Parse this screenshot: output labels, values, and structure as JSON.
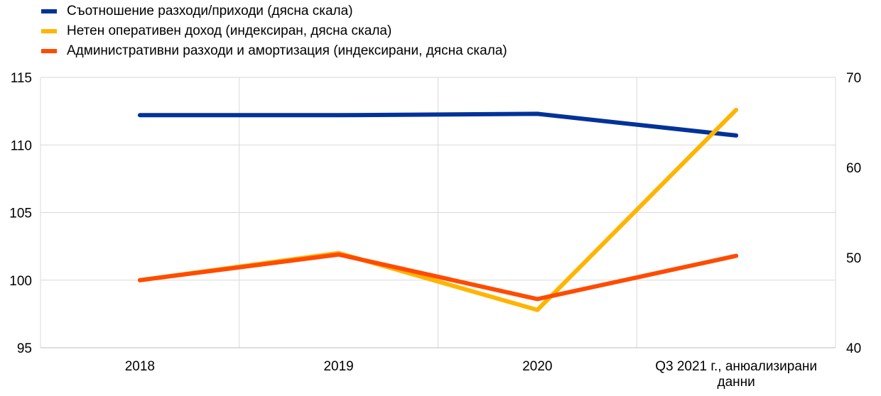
{
  "chart_data": {
    "type": "line",
    "categories": [
      "2018",
      "2019",
      "2020",
      "Q3 2021 г., анюализирани данни"
    ],
    "left_axis": {
      "ylim": [
        95,
        115
      ],
      "ticks": [
        "115",
        "110",
        "105",
        "100",
        "95"
      ]
    },
    "right_axis": {
      "ylim": [
        40,
        70
      ],
      "ticks": [
        "70",
        "60",
        "50",
        "40"
      ]
    },
    "grid": true,
    "legend_position": "top-left",
    "series": [
      {
        "name": "Съотношение разходи/приходи (дясна скала)",
        "color": "#003299",
        "axis": "left",
        "values": [
          112.2,
          112.2,
          112.3,
          110.7
        ]
      },
      {
        "name": "Нетен оперативен доход (индексиран, дясна скала)",
        "color": "#ffb400",
        "axis": "left",
        "values": [
          100.0,
          102.0,
          97.8,
          112.6
        ]
      },
      {
        "name": "Административни разходи и амортизация (индексирани, дясна скала)",
        "color": "#ff4b00",
        "axis": "left",
        "values": [
          100.0,
          101.9,
          98.6,
          101.8
        ]
      }
    ]
  }
}
